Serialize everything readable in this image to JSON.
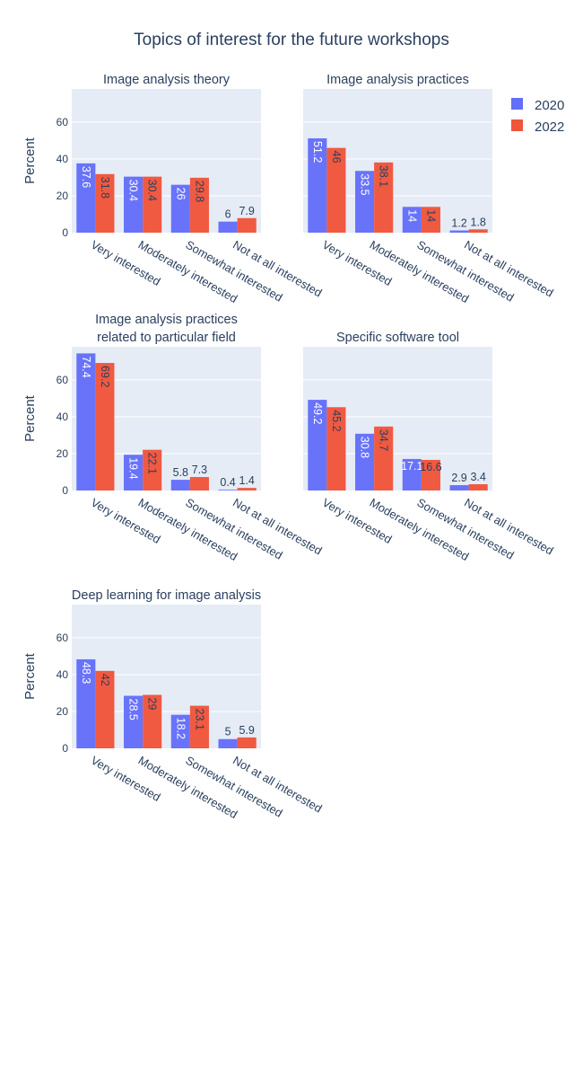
{
  "title": "Topics of interest for the future workshops",
  "colors": {
    "2020": "#636efa",
    "2022": "#ef553b",
    "panel_bg": "#e5ecf6",
    "grid": "#ffffff",
    "text": "#2a3f5f"
  },
  "legend": {
    "position": "top-right",
    "items": [
      {
        "name": "2020"
      },
      {
        "name": "2022"
      }
    ]
  },
  "chart_data": [
    {
      "type": "bar",
      "title": "Image analysis theory",
      "ylabel": "Percent",
      "categories": [
        "Very interested",
        "Moderately interested",
        "Somewhat interested",
        "Not at all interested"
      ],
      "ylim": [
        0,
        78
      ],
      "yticks": [
        0,
        20,
        40,
        60
      ],
      "grid": true,
      "series": [
        {
          "name": "2020",
          "values": [
            37.6,
            30.4,
            26,
            6
          ]
        },
        {
          "name": "2022",
          "values": [
            31.8,
            30.4,
            29.8,
            7.9
          ]
        }
      ]
    },
    {
      "type": "bar",
      "title": "Image analysis practices",
      "ylabel": "",
      "categories": [
        "Very interested",
        "Moderately interested",
        "Somewhat interested",
        "Not at all interested"
      ],
      "ylim": [
        0,
        78
      ],
      "yticks": [
        0,
        20,
        40,
        60
      ],
      "grid": true,
      "series": [
        {
          "name": "2020",
          "values": [
            51.2,
            33.5,
            14,
            1.2
          ]
        },
        {
          "name": "2022",
          "values": [
            46,
            38.1,
            14,
            1.8
          ]
        }
      ]
    },
    {
      "type": "bar",
      "title": "Image analysis practices",
      "title2": "related to particular field",
      "ylabel": "Percent",
      "categories": [
        "Very interested",
        "Moderately interested",
        "Somewhat interested",
        "Not at all interested"
      ],
      "ylim": [
        0,
        78
      ],
      "yticks": [
        0,
        20,
        40,
        60
      ],
      "grid": true,
      "series": [
        {
          "name": "2020",
          "values": [
            74.4,
            19.4,
            5.8,
            0.4
          ]
        },
        {
          "name": "2022",
          "values": [
            69.2,
            22.1,
            7.3,
            1.4
          ]
        }
      ]
    },
    {
      "type": "bar",
      "title": "Specific software tool",
      "ylabel": "",
      "categories": [
        "Very interested",
        "Moderately interested",
        "Somewhat interested",
        "Not at all interested"
      ],
      "ylim": [
        0,
        78
      ],
      "yticks": [
        0,
        20,
        40,
        60
      ],
      "grid": true,
      "series": [
        {
          "name": "2020",
          "values": [
            49.2,
            30.8,
            17.1,
            2.9
          ]
        },
        {
          "name": "2022",
          "values": [
            45.2,
            34.7,
            16.6,
            3.4
          ]
        }
      ]
    },
    {
      "type": "bar",
      "title": "Deep learning for image analysis",
      "ylabel": "Percent",
      "categories": [
        "Very interested",
        "Moderately interested",
        "Somewhat interested",
        "Not at all interested"
      ],
      "ylim": [
        0,
        78
      ],
      "yticks": [
        0,
        20,
        40,
        60
      ],
      "grid": true,
      "series": [
        {
          "name": "2020",
          "values": [
            48.3,
            28.5,
            18.2,
            5
          ]
        },
        {
          "name": "2022",
          "values": [
            42,
            29,
            23.1,
            5.9
          ]
        }
      ]
    }
  ]
}
